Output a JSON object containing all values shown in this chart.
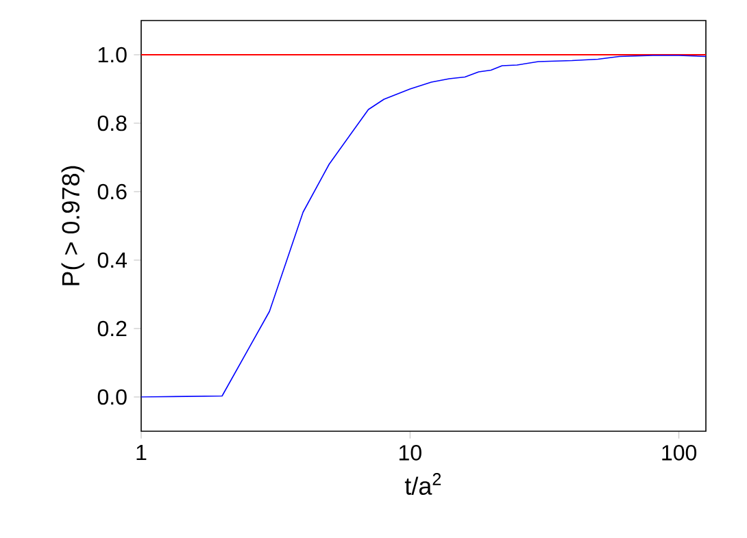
{
  "chart_data": {
    "type": "line",
    "xlabel": "t/a$^{2}$",
    "ylabel": "P( > 0.978)",
    "log": "x",
    "xlim": [
      1,
      126
    ],
    "ylim": [
      -0.1,
      1.1
    ],
    "xticks": [
      1,
      10,
      100
    ],
    "yticks": [
      {
        "value": 0,
        "label": "0.0"
      },
      {
        "value": 0.2,
        "label": "0.2"
      },
      {
        "value": 0.4,
        "label": "0.4"
      },
      {
        "value": 0.6,
        "label": "0.6"
      },
      {
        "value": 0.8,
        "label": "0.8"
      },
      {
        "value": 1,
        "label": "1.0"
      }
    ],
    "grid": false,
    "marker": "none",
    "line_style": "solid",
    "x": [
      1,
      2,
      3,
      4,
      5,
      7,
      8,
      10,
      12,
      14,
      16,
      18,
      20,
      22,
      25,
      30,
      40,
      50,
      60,
      80,
      100,
      126
    ],
    "series": [
      {
        "color": "#0000ff",
        "values": [
          0.0,
          0.003,
          0.25,
          0.54,
          0.68,
          0.84,
          0.87,
          0.9,
          0.92,
          0.93,
          0.935,
          0.95,
          0.955,
          0.968,
          0.97,
          0.98,
          0.983,
          0.987,
          0.995,
          0.998,
          0.998,
          0.995
        ]
      }
    ],
    "ref_lines": [
      {
        "axis": "y",
        "value": 1.0,
        "color": "#ff0000",
        "line_style": "solid"
      }
    ]
  }
}
